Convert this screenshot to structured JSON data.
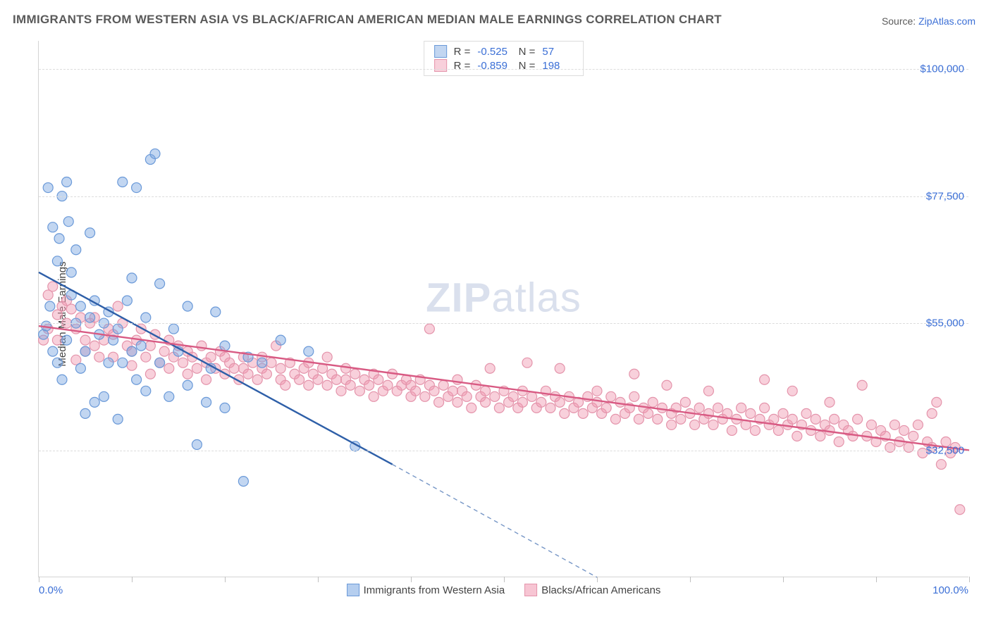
{
  "title": "IMMIGRANTS FROM WESTERN ASIA VS BLACK/AFRICAN AMERICAN MEDIAN MALE EARNINGS CORRELATION CHART",
  "source_prefix": "Source: ",
  "source_link": "ZipAtlas.com",
  "watermark_bold": "ZIP",
  "watermark_light": "atlas",
  "ylabel": "Median Male Earnings",
  "chart": {
    "type": "scatter",
    "xlim": [
      0,
      100
    ],
    "ylim": [
      10000,
      105000
    ],
    "y_gridlines": [
      32500,
      55000,
      77500,
      100000
    ],
    "y_tick_labels": [
      "$32,500",
      "$55,000",
      "$77,500",
      "$100,000"
    ],
    "x_minor_ticks": [
      0,
      10,
      20,
      30,
      40,
      50,
      60,
      70,
      80,
      90,
      100
    ],
    "x_tick_labels": {
      "left": "0.0%",
      "right": "100.0%"
    },
    "background_color": "#ffffff",
    "grid_color": "#dcdcdc",
    "axis_color": "#d4d4d4",
    "marker_radius": 7,
    "marker_stroke_width": 1.2,
    "trend_line_width": 2.4
  },
  "series": [
    {
      "name": "Immigrants from Western Asia",
      "fill_color": "rgba(120,165,225,0.45)",
      "stroke_color": "#6a99d8",
      "trend_color": "#2e5fa8",
      "R": "-0.525",
      "N": "57",
      "trend": {
        "x0": 0,
        "y0": 64000,
        "x_solid_end": 38,
        "y_solid_end": 30000,
        "x1": 60,
        "y1": 10000
      },
      "points": [
        [
          0.5,
          53000
        ],
        [
          0.8,
          54500
        ],
        [
          1,
          79000
        ],
        [
          1.2,
          58000
        ],
        [
          1.5,
          72000
        ],
        [
          1.5,
          50000
        ],
        [
          2,
          48000
        ],
        [
          2,
          66000
        ],
        [
          2.2,
          70000
        ],
        [
          2.5,
          77500
        ],
        [
          2.5,
          45000
        ],
        [
          3,
          52000
        ],
        [
          3,
          80000
        ],
        [
          3.2,
          73000
        ],
        [
          3.5,
          60000
        ],
        [
          3.5,
          64000
        ],
        [
          4,
          55000
        ],
        [
          4,
          68000
        ],
        [
          4.5,
          47000
        ],
        [
          4.5,
          58000
        ],
        [
          5,
          50000
        ],
        [
          5,
          39000
        ],
        [
          5.5,
          56000
        ],
        [
          5.5,
          71000
        ],
        [
          6,
          41000
        ],
        [
          6,
          59000
        ],
        [
          6.5,
          53000
        ],
        [
          7,
          55000
        ],
        [
          7,
          42000
        ],
        [
          7.5,
          57000
        ],
        [
          7.5,
          48000
        ],
        [
          8,
          52000
        ],
        [
          8.5,
          54000
        ],
        [
          8.5,
          38000
        ],
        [
          9,
          80000
        ],
        [
          9,
          48000
        ],
        [
          9.5,
          59000
        ],
        [
          10,
          50000
        ],
        [
          10,
          63000
        ],
        [
          10.5,
          45000
        ],
        [
          10.5,
          79000
        ],
        [
          11,
          51000
        ],
        [
          11.5,
          43000
        ],
        [
          11.5,
          56000
        ],
        [
          12,
          84000
        ],
        [
          12.5,
          85000
        ],
        [
          13,
          48000
        ],
        [
          13,
          62000
        ],
        [
          14,
          42000
        ],
        [
          14.5,
          54000
        ],
        [
          15,
          50000
        ],
        [
          16,
          58000
        ],
        [
          16,
          44000
        ],
        [
          17,
          33500
        ],
        [
          18,
          41000
        ],
        [
          18.5,
          47000
        ],
        [
          19,
          57000
        ],
        [
          20,
          51000
        ],
        [
          20,
          40000
        ],
        [
          22,
          27000
        ],
        [
          22.5,
          49000
        ],
        [
          24,
          48000
        ],
        [
          26,
          52000
        ],
        [
          29,
          50000
        ],
        [
          34,
          33200
        ]
      ]
    },
    {
      "name": "Blacks/African Americans",
      "fill_color": "rgba(240,150,175,0.45)",
      "stroke_color": "#e494ab",
      "trend_color": "#d85a83",
      "R": "-0.859",
      "N": "198",
      "trend": {
        "x0": 0,
        "y0": 54500,
        "x_solid_end": 100,
        "y_solid_end": 32500,
        "x1": 100,
        "y1": 32500
      },
      "points": [
        [
          0.5,
          52000
        ],
        [
          1,
          60000
        ],
        [
          1,
          54000
        ],
        [
          1.5,
          61500
        ],
        [
          2,
          56500
        ],
        [
          2,
          52000
        ],
        [
          2.5,
          58000
        ],
        [
          3,
          55000
        ],
        [
          3,
          59000
        ],
        [
          3.5,
          57500
        ],
        [
          4,
          48500
        ],
        [
          4,
          54000
        ],
        [
          4.5,
          56000
        ],
        [
          5,
          52000
        ],
        [
          5,
          50000
        ],
        [
          5.5,
          55000
        ],
        [
          6,
          51000
        ],
        [
          6,
          56000
        ],
        [
          6.5,
          49000
        ],
        [
          7,
          52000
        ],
        [
          7.5,
          54000
        ],
        [
          8,
          53000
        ],
        [
          8,
          49000
        ],
        [
          8.5,
          58000
        ],
        [
          9,
          55000
        ],
        [
          9.5,
          51000
        ],
        [
          10,
          50000
        ],
        [
          10,
          47500
        ],
        [
          10.5,
          52000
        ],
        [
          11,
          54000
        ],
        [
          11.5,
          49000
        ],
        [
          12,
          51000
        ],
        [
          12,
          46000
        ],
        [
          12.5,
          53000
        ],
        [
          13,
          48000
        ],
        [
          13.5,
          50000
        ],
        [
          14,
          47000
        ],
        [
          14,
          52000
        ],
        [
          14.5,
          49000
        ],
        [
          15,
          51000
        ],
        [
          15.5,
          48000
        ],
        [
          16,
          46000
        ],
        [
          16,
          50000
        ],
        [
          16.5,
          49000
        ],
        [
          17,
          47000
        ],
        [
          17.5,
          51000
        ],
        [
          18,
          48000
        ],
        [
          18,
          45000
        ],
        [
          18.5,
          49000
        ],
        [
          19,
          47000
        ],
        [
          19.5,
          50000
        ],
        [
          20,
          46000
        ],
        [
          20,
          49000
        ],
        [
          20.5,
          48000
        ],
        [
          21,
          47000
        ],
        [
          21.5,
          45000
        ],
        [
          22,
          49000
        ],
        [
          22,
          47000
        ],
        [
          22.5,
          46000
        ],
        [
          23,
          48000
        ],
        [
          23.5,
          45000
        ],
        [
          24,
          47000
        ],
        [
          24,
          49000
        ],
        [
          24.5,
          46000
        ],
        [
          25,
          48000
        ],
        [
          25.5,
          51000
        ],
        [
          26,
          47000
        ],
        [
          26,
          45000
        ],
        [
          26.5,
          44000
        ],
        [
          27,
          48000
        ],
        [
          27.5,
          46000
        ],
        [
          28,
          45000
        ],
        [
          28.5,
          47000
        ],
        [
          29,
          44000
        ],
        [
          29,
          48000
        ],
        [
          29.5,
          46000
        ],
        [
          30,
          45000
        ],
        [
          30.5,
          47000
        ],
        [
          31,
          44000
        ],
        [
          31,
          49000
        ],
        [
          31.5,
          46000
        ],
        [
          32,
          45000
        ],
        [
          32.5,
          43000
        ],
        [
          33,
          47000
        ],
        [
          33,
          45000
        ],
        [
          33.5,
          44000
        ],
        [
          34,
          46000
        ],
        [
          34.5,
          43000
        ],
        [
          35,
          45000
        ],
        [
          35.5,
          44000
        ],
        [
          36,
          42000
        ],
        [
          36,
          46000
        ],
        [
          36.5,
          45000
        ],
        [
          37,
          43000
        ],
        [
          37.5,
          44000
        ],
        [
          38,
          46000
        ],
        [
          38.5,
          43000
        ],
        [
          39,
          44000
        ],
        [
          39.5,
          45000
        ],
        [
          40,
          42000
        ],
        [
          40,
          44000
        ],
        [
          40.5,
          43000
        ],
        [
          41,
          45000
        ],
        [
          41.5,
          42000
        ],
        [
          42,
          44000
        ],
        [
          42,
          54000
        ],
        [
          42.5,
          43000
        ],
        [
          43,
          41000
        ],
        [
          43.5,
          44000
        ],
        [
          44,
          42000
        ],
        [
          44.5,
          43000
        ],
        [
          45,
          41000
        ],
        [
          45,
          45000
        ],
        [
          45.5,
          43000
        ],
        [
          46,
          42000
        ],
        [
          46.5,
          40000
        ],
        [
          47,
          44000
        ],
        [
          47.5,
          42000
        ],
        [
          48,
          43000
        ],
        [
          48,
          41000
        ],
        [
          48.5,
          47000
        ],
        [
          49,
          42000
        ],
        [
          49.5,
          40000
        ],
        [
          50,
          43000
        ],
        [
          50.5,
          41000
        ],
        [
          51,
          42000
        ],
        [
          51.5,
          40000
        ],
        [
          52,
          43000
        ],
        [
          52,
          41000
        ],
        [
          52.5,
          48000
        ],
        [
          53,
          42000
        ],
        [
          53.5,
          40000
        ],
        [
          54,
          41000
        ],
        [
          54.5,
          43000
        ],
        [
          55,
          40000
        ],
        [
          55.5,
          42000
        ],
        [
          56,
          41000
        ],
        [
          56,
          47000
        ],
        [
          56.5,
          39000
        ],
        [
          57,
          42000
        ],
        [
          57.5,
          40000
        ],
        [
          58,
          41000
        ],
        [
          58.5,
          39000
        ],
        [
          59,
          42000
        ],
        [
          59.5,
          40000
        ],
        [
          60,
          41000
        ],
        [
          60,
          43000
        ],
        [
          60.5,
          39000
        ],
        [
          61,
          40000
        ],
        [
          61.5,
          42000
        ],
        [
          62,
          38000
        ],
        [
          62.5,
          41000
        ],
        [
          63,
          39000
        ],
        [
          63.5,
          40000
        ],
        [
          64,
          42000
        ],
        [
          64,
          46000
        ],
        [
          64.5,
          38000
        ],
        [
          65,
          40000
        ],
        [
          65.5,
          39000
        ],
        [
          66,
          41000
        ],
        [
          66.5,
          38000
        ],
        [
          67,
          40000
        ],
        [
          67.5,
          44000
        ],
        [
          68,
          39000
        ],
        [
          68,
          37000
        ],
        [
          68.5,
          40000
        ],
        [
          69,
          38000
        ],
        [
          69.5,
          41000
        ],
        [
          70,
          39000
        ],
        [
          70.5,
          37000
        ],
        [
          71,
          40000
        ],
        [
          71.5,
          38000
        ],
        [
          72,
          39000
        ],
        [
          72,
          43000
        ],
        [
          72.5,
          37000
        ],
        [
          73,
          40000
        ],
        [
          73.5,
          38000
        ],
        [
          74,
          39000
        ],
        [
          74.5,
          36000
        ],
        [
          75,
          38000
        ],
        [
          75.5,
          40000
        ],
        [
          76,
          37000
        ],
        [
          76.5,
          39000
        ],
        [
          77,
          36000
        ],
        [
          77.5,
          38000
        ],
        [
          78,
          40000
        ],
        [
          78,
          45000
        ],
        [
          78.5,
          37000
        ],
        [
          79,
          38000
        ],
        [
          79.5,
          36000
        ],
        [
          80,
          39000
        ],
        [
          80.5,
          37000
        ],
        [
          81,
          38000
        ],
        [
          81,
          43000
        ],
        [
          81.5,
          35000
        ],
        [
          82,
          37000
        ],
        [
          82.5,
          39000
        ],
        [
          83,
          36000
        ],
        [
          83.5,
          38000
        ],
        [
          84,
          35000
        ],
        [
          84.5,
          37000
        ],
        [
          85,
          41000
        ],
        [
          85,
          36000
        ],
        [
          85.5,
          38000
        ],
        [
          86,
          34000
        ],
        [
          86.5,
          37000
        ],
        [
          87,
          36000
        ],
        [
          87.5,
          35000
        ],
        [
          88,
          38000
        ],
        [
          88.5,
          44000
        ],
        [
          89,
          35000
        ],
        [
          89.5,
          37000
        ],
        [
          90,
          34000
        ],
        [
          90.5,
          36000
        ],
        [
          91,
          35000
        ],
        [
          91.5,
          33000
        ],
        [
          92,
          37000
        ],
        [
          92.5,
          34000
        ],
        [
          93,
          36000
        ],
        [
          93.5,
          33000
        ],
        [
          94,
          35000
        ],
        [
          94.5,
          37000
        ],
        [
          95,
          32000
        ],
        [
          95.5,
          34000
        ],
        [
          96,
          33000
        ],
        [
          96,
          39000
        ],
        [
          96.5,
          41000
        ],
        [
          97,
          30000
        ],
        [
          97.5,
          34000
        ],
        [
          98,
          32000
        ],
        [
          98.5,
          33000
        ],
        [
          99,
          22000
        ]
      ]
    }
  ],
  "bottom_legend": [
    {
      "swatch_fill": "rgba(120,165,225,0.55)",
      "swatch_border": "#6a99d8",
      "label": "Immigrants from Western Asia"
    },
    {
      "swatch_fill": "rgba(240,150,175,0.55)",
      "swatch_border": "#e494ab",
      "label": "Blacks/African Americans"
    }
  ]
}
